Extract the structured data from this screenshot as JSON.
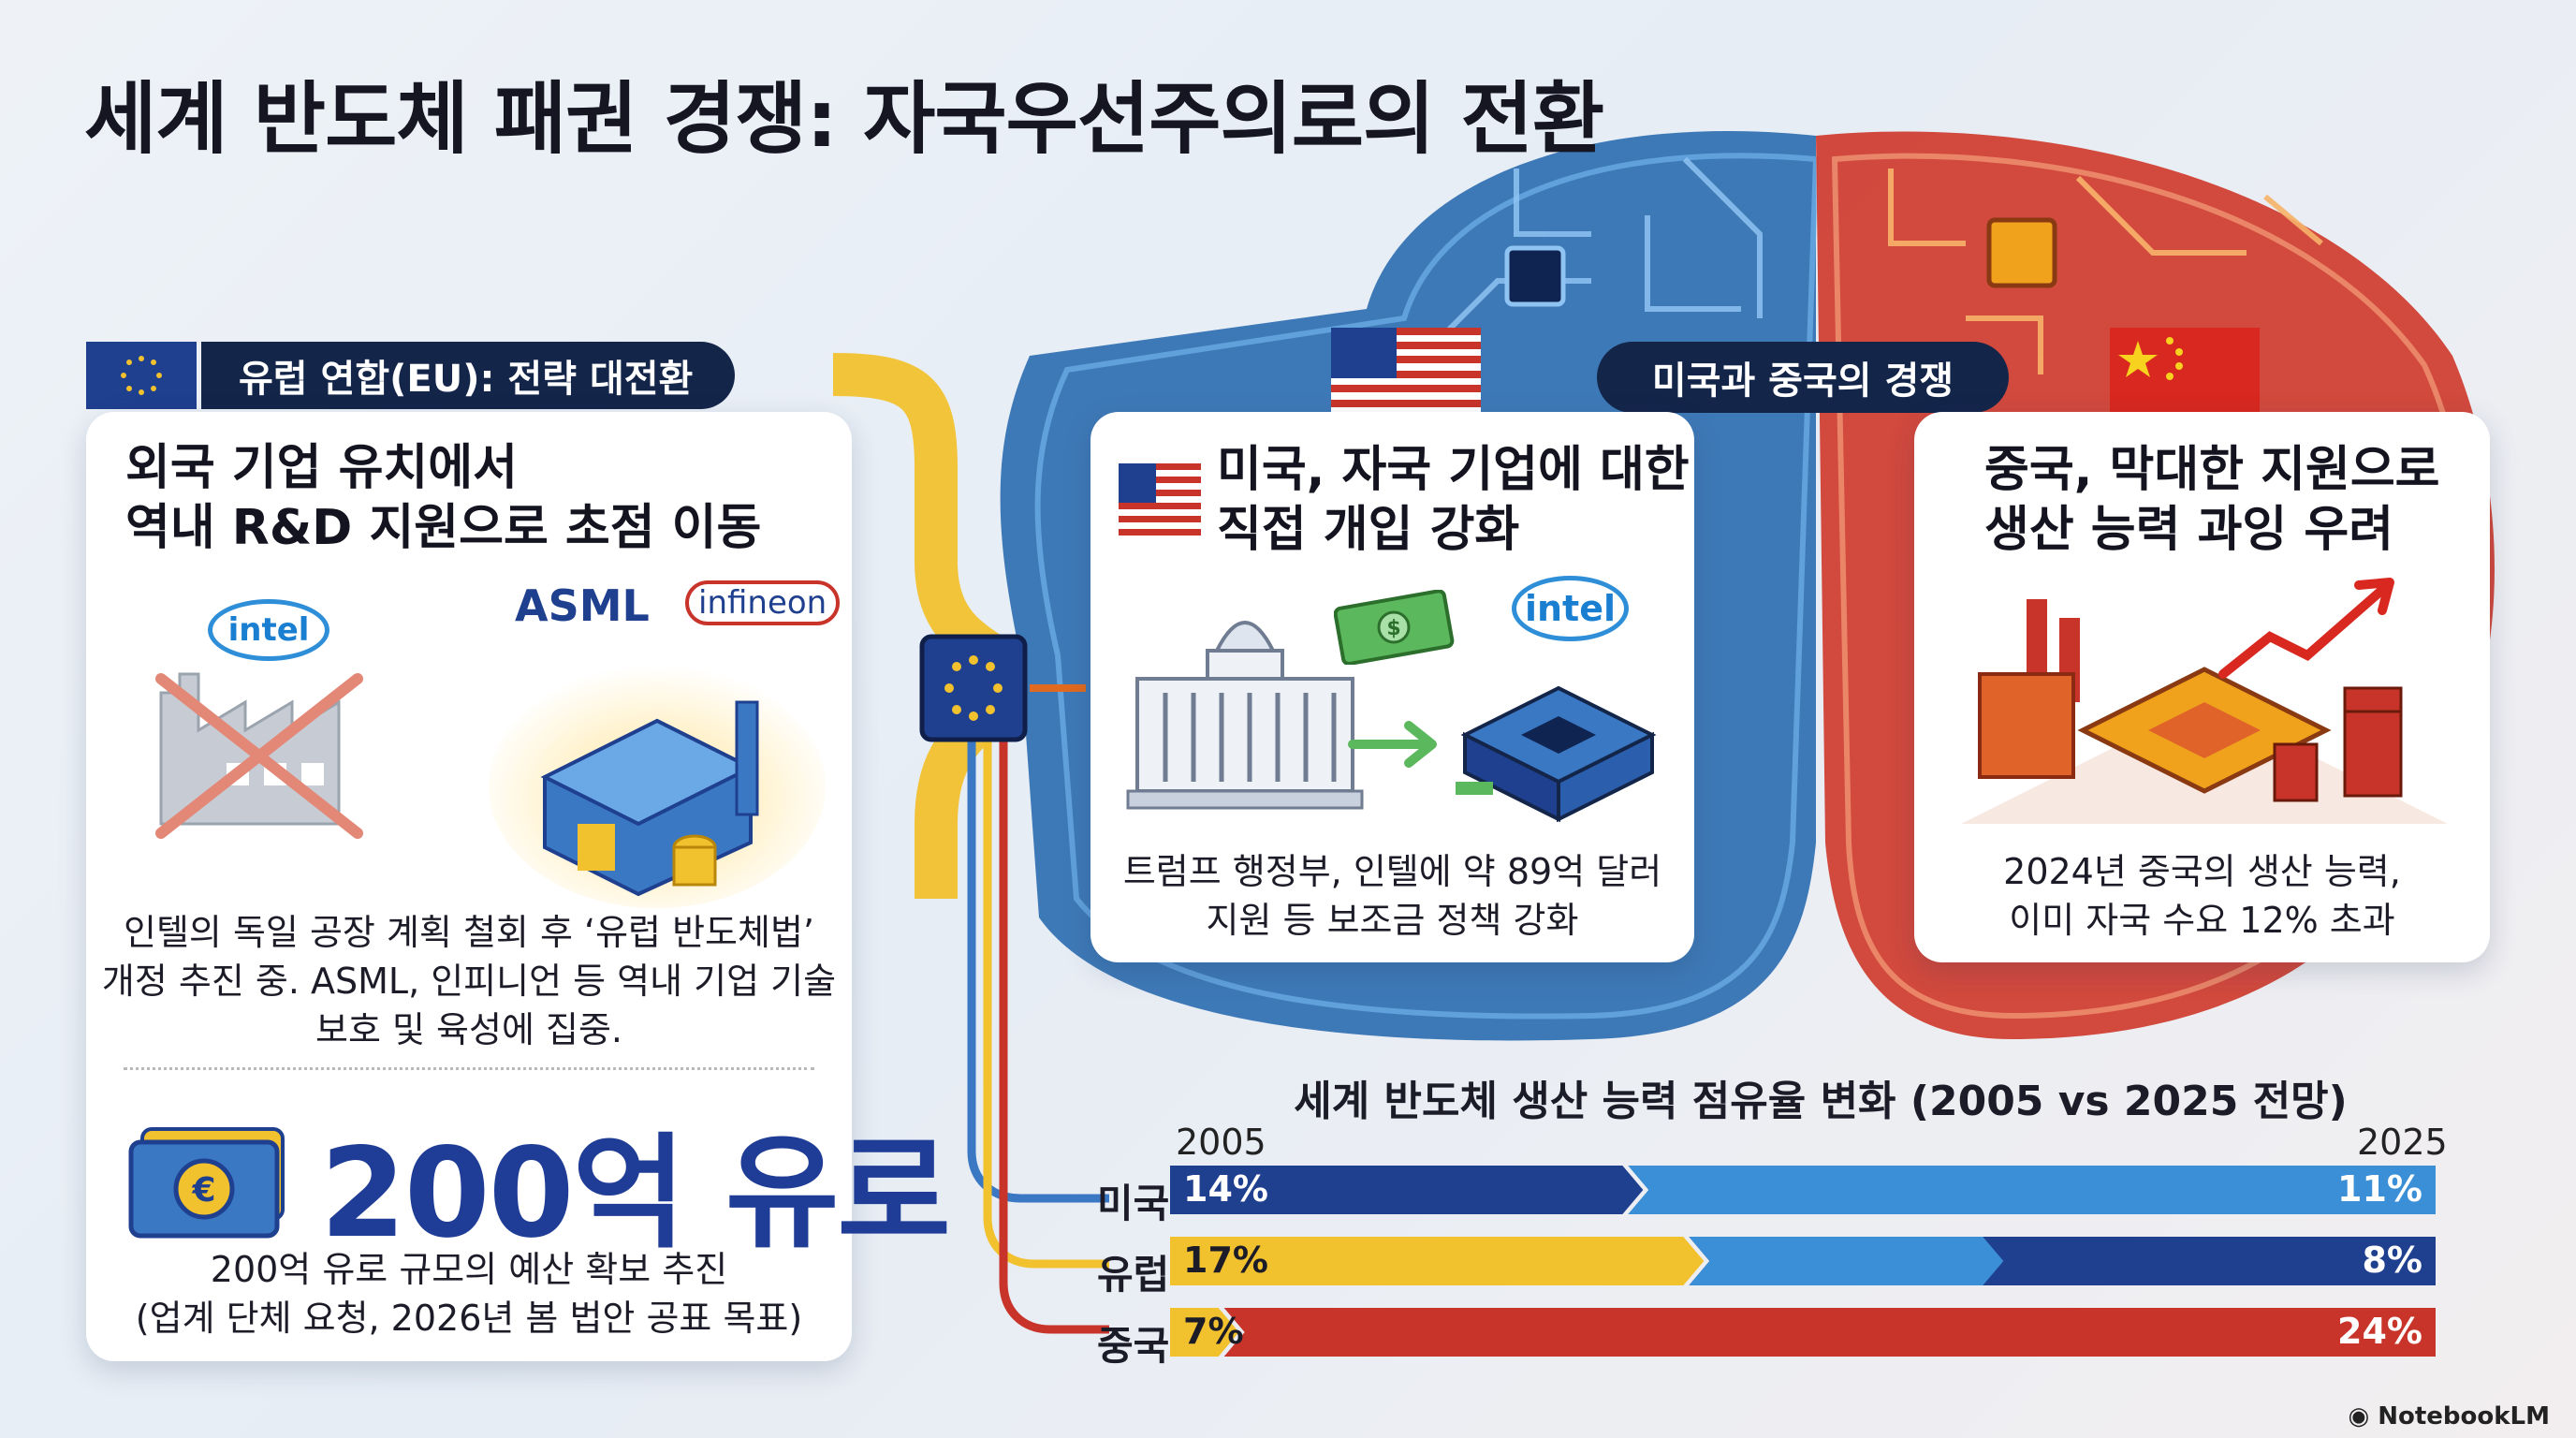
{
  "title": "세계 반도체 패권 경쟁: 자국우선주의로의 전환",
  "eu": {
    "banner": "유럽 연합(EU): 전략 대전환",
    "heading_line1": "외국 기업 유치에서",
    "heading_line2": "역내 R&D 지원으로 초점 이동",
    "logos": {
      "intel": "intel",
      "asml": "ASML",
      "infineon": "infineon"
    },
    "desc_line1": "인텔의 독일 공장 계획 철회 후 ‘유럽 반도체법’",
    "desc_line2": "개정 추진 중. ASML, 인피니언 등 역내 기업 기술",
    "desc_line3": "보호 및 육성에 집중.",
    "amount": "200억 유로",
    "amount_desc_line1": "200억 유로 규모의 예산 확보 추진",
    "amount_desc_line2": "(업계 단체 요청, 2026년 봄 법안 공표 목표)"
  },
  "competition_pill": "미국과 중국의 경쟁",
  "us": {
    "heading_line1": "미국, 자국 기업에 대한",
    "heading_line2": "직접 개입 강화",
    "logo_intel": "intel",
    "desc_line1": "트럼프 행정부, 인텔에 약 89억 달러",
    "desc_line2": "지원 등 보조금 정책 강화"
  },
  "cn": {
    "heading_line1": "중국, 막대한 지원으로",
    "heading_line2": "생산 능력 과잉 우려",
    "desc_line1": "2024년 중국의 생산 능력,",
    "desc_line2": "이미 자국 수요 12% 초과"
  },
  "colors": {
    "us_blue": "#1f3f8f",
    "eu_yellow": "#f2c12e",
    "cn_red": "#c8342a",
    "light_blue": "#3a8fd6",
    "navy": "#14254a"
  },
  "chart_data": {
    "type": "bar",
    "title": "세계 반도체 생산 능력 점유율 변화 (2005 vs 2025 전망)",
    "x_labels": [
      "2005",
      "2025"
    ],
    "rows": [
      {
        "label": "미국",
        "v2005": "14%",
        "v2025": "11%",
        "from_color": "#1f3f8f",
        "to_color": "#3a8fd6"
      },
      {
        "label": "유럽",
        "v2005": "17%",
        "v2025": "8%",
        "from_color": "#f2c12e",
        "to_color": "#1f3f8f"
      },
      {
        "label": "중국",
        "v2005": "7%",
        "v2025": "24%",
        "from_color": "#f2c12e",
        "to_color": "#c8342a"
      }
    ],
    "values_2005": [
      14,
      17,
      7
    ],
    "values_2025": [
      11,
      8,
      24
    ]
  },
  "footer_brand": "NotebookLM",
  "icons": [
    "eu-flag-icon",
    "us-flag-icon",
    "china-flag-icon",
    "factory-icon",
    "chip-icon",
    "money-icon",
    "capitol-icon",
    "euro-icon"
  ]
}
